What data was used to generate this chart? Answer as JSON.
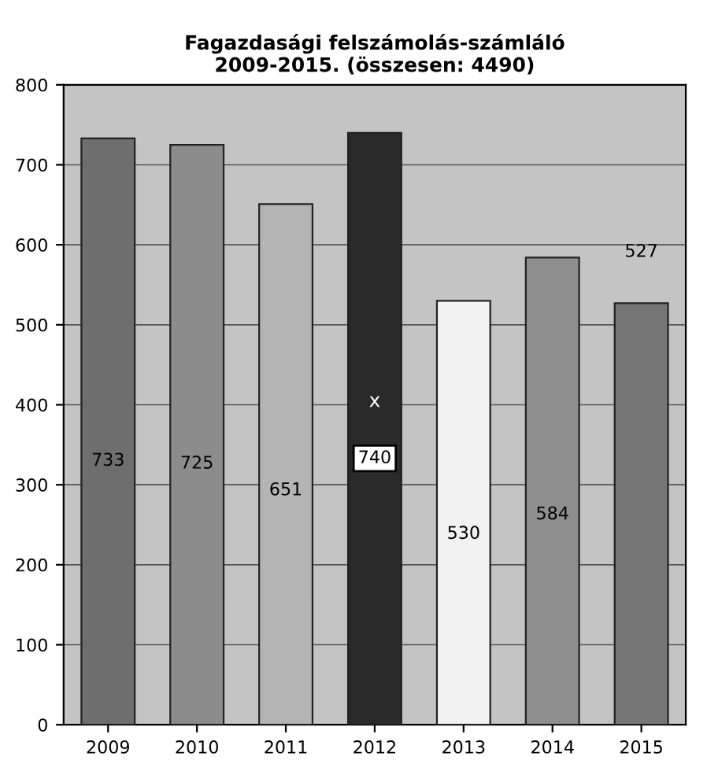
{
  "chart_data": {
    "type": "bar",
    "title": "Fagazdasági felszámolás-számláló\n2009-2015. (összesen: 4490)",
    "categories": [
      "2009",
      "2010",
      "2011",
      "2012",
      "2013",
      "2014",
      "2015"
    ],
    "values": [
      733,
      725,
      651,
      740,
      530,
      584,
      527
    ],
    "colors": [
      "#6e6e6e",
      "#8c8c8c",
      "#b4b4b4",
      "#2a2a2a",
      "#f2f2f2",
      "#8e8e8e",
      "#767676"
    ],
    "data_labels": true,
    "annotations": [
      "x"
    ],
    "ylim": [
      0,
      800
    ],
    "yticks": [
      0,
      100,
      200,
      300,
      400,
      500,
      600,
      700,
      800
    ],
    "grid": "y"
  }
}
